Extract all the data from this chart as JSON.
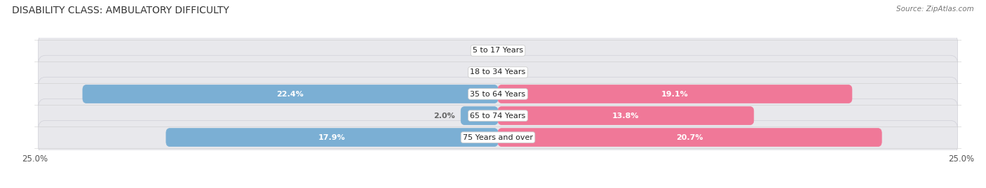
{
  "title": "DISABILITY CLASS: AMBULATORY DIFFICULTY",
  "source": "Source: ZipAtlas.com",
  "categories": [
    "5 to 17 Years",
    "18 to 34 Years",
    "35 to 64 Years",
    "65 to 74 Years",
    "75 Years and over"
  ],
  "male_values": [
    0.0,
    0.0,
    22.4,
    2.0,
    17.9
  ],
  "female_values": [
    0.0,
    0.0,
    19.1,
    13.8,
    20.7
  ],
  "x_max": 25.0,
  "male_color": "#7BAFD4",
  "female_color": "#F07898",
  "row_bg_color": "#E8E8EC",
  "row_border_color": "#D0D0D8",
  "label_color_inside": "#FFFFFF",
  "label_color_outside": "#666666",
  "title_fontsize": 10,
  "source_fontsize": 7.5,
  "axis_label_fontsize": 8.5,
  "bar_label_fontsize": 8,
  "category_fontsize": 8,
  "legend_fontsize": 8.5
}
